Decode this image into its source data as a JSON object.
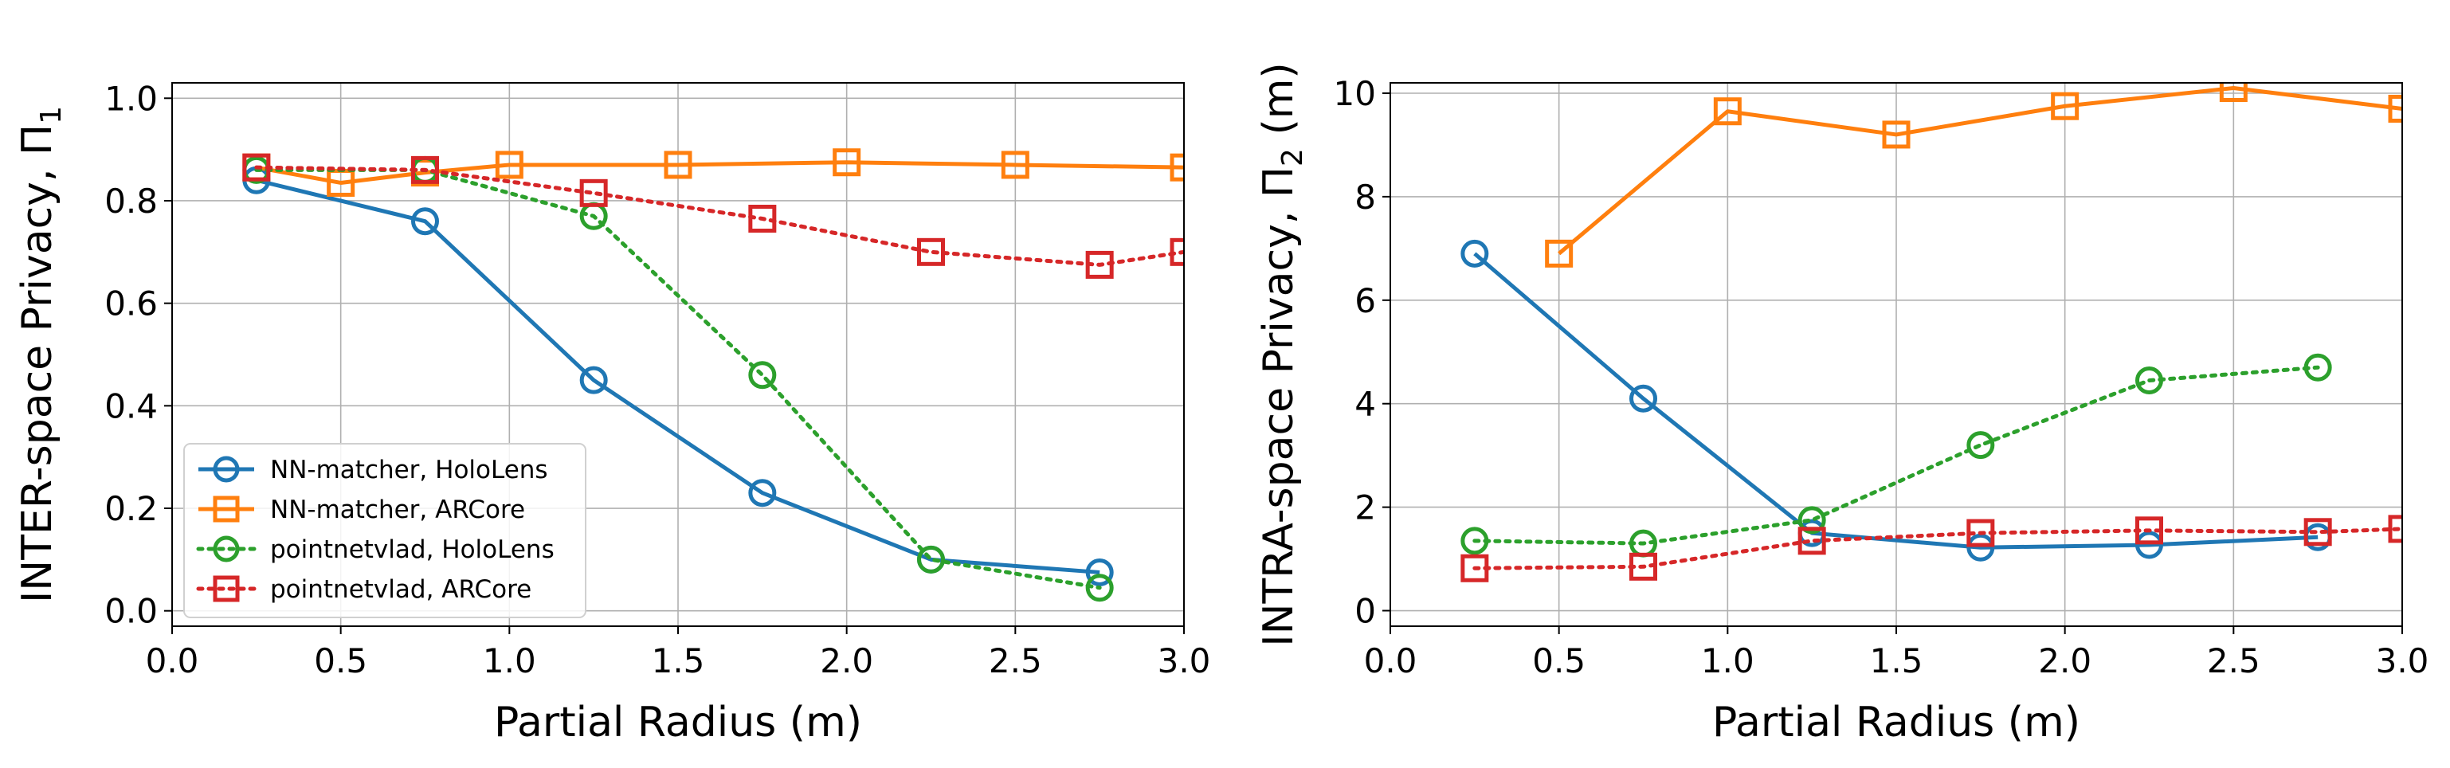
{
  "chart_data": [
    {
      "type": "line",
      "ylabel_main": "INTER-space Privacy, Π",
      "ylabel_sub": "1",
      "xlabel": "Partial Radius (m)",
      "xlim": [
        0.0,
        3.0
      ],
      "ylim": [
        -0.03,
        1.03
      ],
      "xticks": [
        "0.0",
        "0.5",
        "1.0",
        "1.5",
        "2.0",
        "2.5",
        "3.0"
      ],
      "yticks": [
        "0.0",
        "0.2",
        "0.4",
        "0.6",
        "0.8",
        "1.0"
      ],
      "grid": true,
      "legend": "lower-left",
      "series": [
        {
          "name": "NN-matcher, HoloLens",
          "color": "#1f77b4",
          "marker": "circle",
          "linestyle": "solid",
          "x": [
            0.25,
            0.75,
            1.25,
            1.75,
            2.25,
            2.75
          ],
          "y": [
            0.84,
            0.76,
            0.45,
            0.23,
            0.1,
            0.075
          ]
        },
        {
          "name": "NN-matcher, ARCore",
          "color": "#ff7f0e",
          "marker": "square",
          "linestyle": "solid",
          "x": [
            0.25,
            0.5,
            0.75,
            1.0,
            1.5,
            2.0,
            2.5,
            3.0
          ],
          "y": [
            0.865,
            0.835,
            0.855,
            0.87,
            0.87,
            0.875,
            0.87,
            0.865
          ]
        },
        {
          "name": "pointnetvlad, HoloLens",
          "color": "#2ca02c",
          "marker": "circle",
          "linestyle": "dotted",
          "x": [
            0.25,
            0.75,
            1.25,
            1.75,
            2.25,
            2.75
          ],
          "y": [
            0.86,
            0.86,
            0.77,
            0.46,
            0.1,
            0.045
          ]
        },
        {
          "name": "pointnetvlad, ARCore",
          "color": "#d62728",
          "marker": "square",
          "linestyle": "dotted",
          "x": [
            0.25,
            0.75,
            1.25,
            1.75,
            2.25,
            2.75,
            3.0
          ],
          "y": [
            0.865,
            0.86,
            0.815,
            0.765,
            0.7,
            0.675,
            0.7
          ]
        }
      ]
    },
    {
      "type": "line",
      "ylabel_main": "INTRA-space Privacy, Π",
      "ylabel_sub": "2",
      "ylabel_unit": " (m)",
      "xlabel": "Partial Radius (m)",
      "xlim": [
        0.0,
        3.0
      ],
      "ylim": [
        -0.3,
        10.2
      ],
      "xticks": [
        "0.0",
        "0.5",
        "1.0",
        "1.5",
        "2.0",
        "2.5",
        "3.0"
      ],
      "yticks": [
        "0",
        "2",
        "4",
        "6",
        "8",
        "10"
      ],
      "grid": true,
      "legend": "none",
      "series": [
        {
          "color": "#1f77b4",
          "marker": "circle",
          "linestyle": "solid",
          "x": [
            0.25,
            0.75,
            1.25,
            1.75,
            2.25,
            2.75
          ],
          "y": [
            6.9,
            4.1,
            1.5,
            1.22,
            1.27,
            1.42
          ]
        },
        {
          "color": "#ff7f0e",
          "marker": "square",
          "linestyle": "solid",
          "x": [
            0.5,
            1.0,
            1.5,
            2.0,
            2.5,
            3.0
          ],
          "y": [
            6.9,
            9.65,
            9.2,
            9.75,
            10.1,
            9.7
          ]
        },
        {
          "color": "#2ca02c",
          "marker": "circle",
          "linestyle": "dotted",
          "x": [
            0.25,
            0.75,
            1.25,
            1.75,
            2.25,
            2.75
          ],
          "y": [
            1.35,
            1.3,
            1.75,
            3.2,
            4.45,
            4.7
          ]
        },
        {
          "color": "#d62728",
          "marker": "square",
          "linestyle": "dotted",
          "x": [
            0.25,
            0.75,
            1.25,
            1.75,
            2.25,
            2.75,
            3.0
          ],
          "y": [
            0.82,
            0.85,
            1.35,
            1.5,
            1.55,
            1.52,
            1.58
          ]
        }
      ]
    }
  ]
}
